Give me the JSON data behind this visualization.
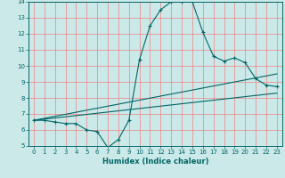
{
  "title": "",
  "xlabel": "Humidex (Indice chaleur)",
  "ylabel": "",
  "bg_color": "#cce9e9",
  "grid_color": "#f08080",
  "line_color": "#006666",
  "x_range": [
    -0.5,
    23.5
  ],
  "y_range": [
    5,
    14
  ],
  "curve1_x": [
    0,
    1,
    2,
    3,
    4,
    5,
    6,
    7,
    8,
    9,
    10,
    11,
    12,
    13,
    14,
    15,
    16,
    17,
    18,
    19,
    20,
    21,
    22,
    23
  ],
  "curve1_y": [
    6.6,
    6.6,
    6.5,
    6.4,
    6.4,
    6.0,
    5.9,
    4.9,
    5.4,
    6.6,
    10.4,
    12.5,
    13.5,
    14.0,
    14.0,
    14.0,
    12.1,
    10.6,
    10.3,
    10.5,
    10.2,
    9.2,
    8.8,
    8.7
  ],
  "curve2_x": [
    0,
    23
  ],
  "curve2_y": [
    6.6,
    9.5
  ],
  "curve3_x": [
    0,
    23
  ],
  "curve3_y": [
    6.6,
    8.3
  ],
  "yticks": [
    5,
    6,
    7,
    8,
    9,
    10,
    11,
    12,
    13,
    14
  ],
  "xticks": [
    0,
    1,
    2,
    3,
    4,
    5,
    6,
    7,
    8,
    9,
    10,
    11,
    12,
    13,
    14,
    15,
    16,
    17,
    18,
    19,
    20,
    21,
    22,
    23
  ]
}
